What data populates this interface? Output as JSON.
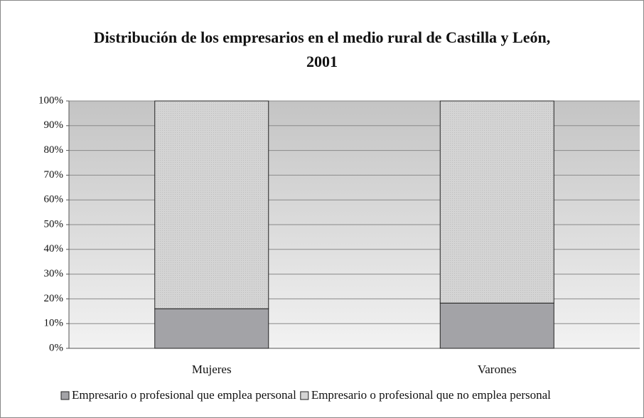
{
  "chart_data": {
    "type": "stacked_bar",
    "title": "Distribución de los empresarios en el medio rural de Castilla y León, 2001",
    "categories": [
      "Mujeres",
      "Varones"
    ],
    "series": [
      {
        "name": "Empresario o profesional que emplea personal",
        "color": "#a3a3a7",
        "values": [
          16,
          18.3
        ]
      },
      {
        "name": "Empresario o profesional que no emplea personal",
        "color": "#d4d4d4",
        "values": [
          84,
          81.7
        ]
      }
    ],
    "ylim": [
      0,
      100
    ],
    "yticks": [
      {
        "value": 0,
        "label": "0%"
      },
      {
        "value": 10,
        "label": "10%"
      },
      {
        "value": 20,
        "label": "20%"
      },
      {
        "value": 30,
        "label": "30%"
      },
      {
        "value": 40,
        "label": "40%"
      },
      {
        "value": 50,
        "label": "50%"
      },
      {
        "value": 60,
        "label": "60%"
      },
      {
        "value": 70,
        "label": "70%"
      },
      {
        "value": 80,
        "label": "80%"
      },
      {
        "value": 90,
        "label": "90%"
      },
      {
        "value": 100,
        "label": "100%"
      }
    ],
    "grid": true,
    "legend": "bottom"
  }
}
